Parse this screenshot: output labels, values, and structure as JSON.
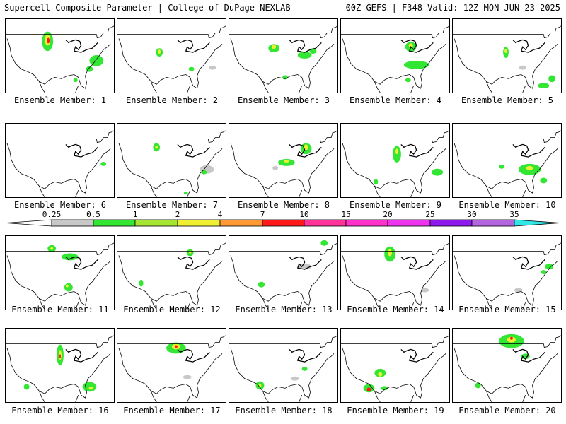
{
  "header": {
    "title": "Supercell Composite Parameter | College of DuPage NEXLAB",
    "run_info": "00Z GEFS | F348 Valid: 12Z MON JUN 23 2025"
  },
  "panels": [
    {
      "label": "Ensemble Member: 1"
    },
    {
      "label": "Ensemble Member: 2"
    },
    {
      "label": "Ensemble Member: 3"
    },
    {
      "label": "Ensemble Member: 4"
    },
    {
      "label": "Ensemble Member: 5"
    },
    {
      "label": "Ensemble Member: 6"
    },
    {
      "label": "Ensemble Member: 7"
    },
    {
      "label": "Ensemble Member: 8"
    },
    {
      "label": "Ensemble Member: 9"
    },
    {
      "label": "Ensemble Member: 10"
    },
    {
      "label": "Ensemble Member: 11"
    },
    {
      "label": "Ensemble Member: 12"
    },
    {
      "label": "Ensemble Member: 13"
    },
    {
      "label": "Ensemble Member: 14"
    },
    {
      "label": "Ensemble Member: 15"
    },
    {
      "label": "Ensemble Member: 16"
    },
    {
      "label": "Ensemble Member: 17"
    },
    {
      "label": "Ensemble Member: 18"
    },
    {
      "label": "Ensemble Member: 19"
    },
    {
      "label": "Ensemble Member: 20"
    }
  ],
  "colorbar": {
    "ticks": [
      "0.25",
      "0.5",
      "1",
      "2",
      "4",
      "7",
      "10",
      "15",
      "20",
      "25",
      "30",
      "35"
    ],
    "colors": [
      "#c8c8c8",
      "#33e633",
      "#a6e633",
      "#f0f033",
      "#ff9933",
      "#ff1a1a",
      "#ff3399",
      "#ff33cc",
      "#ee33ee",
      "#8f1aee",
      "#b366e0",
      "#33e6e6"
    ]
  }
}
